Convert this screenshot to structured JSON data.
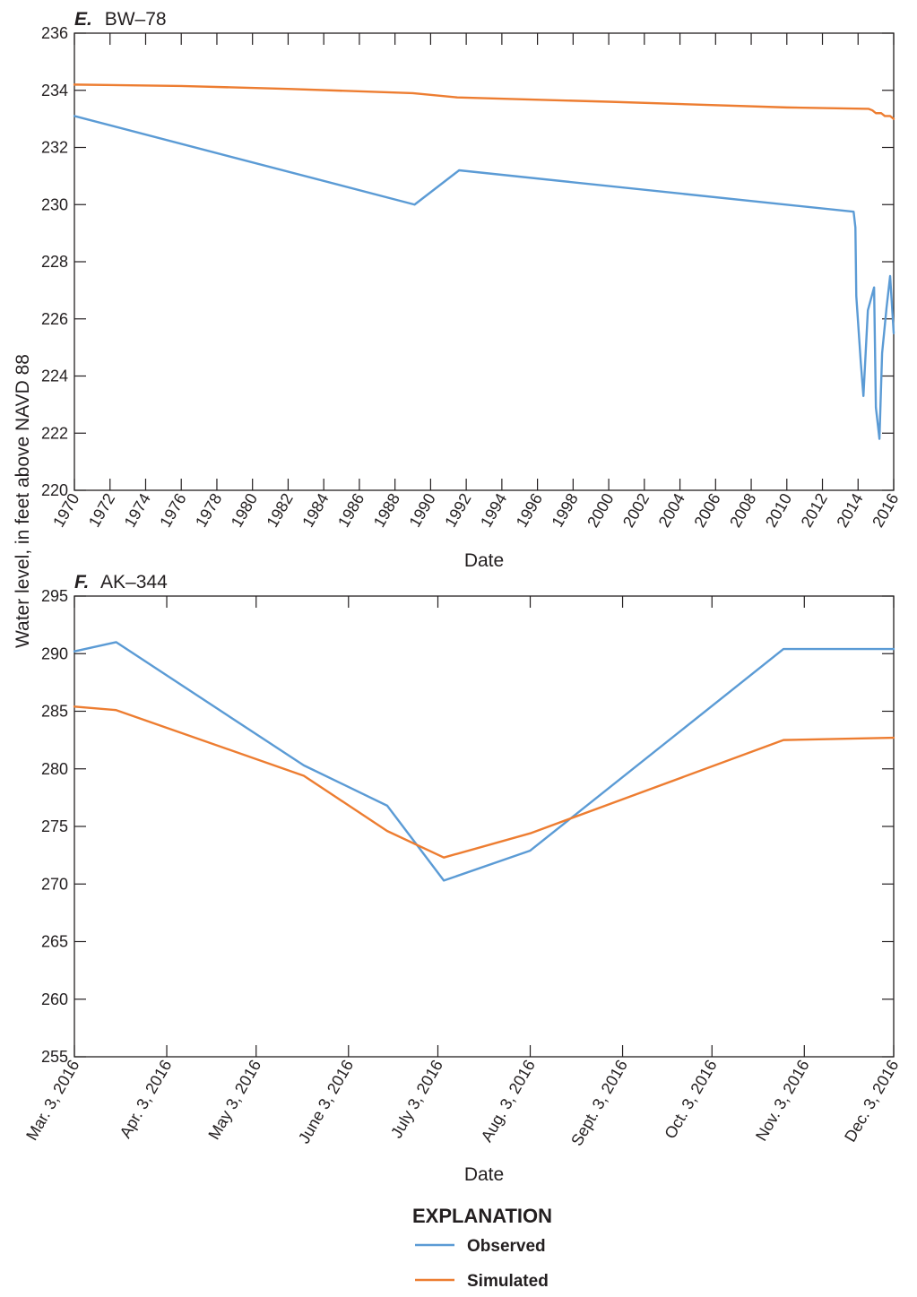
{
  "y_axis_label": "Water level, in feet above NAVD 88",
  "legend": {
    "title": "EXPLANATION",
    "items": [
      {
        "label": "Observed",
        "color": "#5b9bd5"
      },
      {
        "label": "Simulated",
        "color": "#ed7d31"
      }
    ]
  },
  "chart_data": [
    {
      "type": "line",
      "panel_letter": "E.",
      "title": "BW–78",
      "xlabel": "Date",
      "ylabel": "Water level, in feet above NAVD 88",
      "x_unit": "year",
      "xlim": [
        1970,
        2016
      ],
      "ylim": [
        220,
        236
      ],
      "x_ticks": [
        1970,
        1972,
        1974,
        1976,
        1978,
        1980,
        1982,
        1984,
        1986,
        1988,
        1990,
        1992,
        1994,
        1996,
        1998,
        2000,
        2002,
        2004,
        2006,
        2008,
        2010,
        2012,
        2014,
        2016
      ],
      "x_tick_labels": [
        "1970",
        "1972",
        "1974",
        "1976",
        "1978",
        "1980",
        "1982",
        "1984",
        "1986",
        "1988",
        "1990",
        "1992",
        "1994",
        "1996",
        "1998",
        "2000",
        "2002",
        "2004",
        "2006",
        "2008",
        "2010",
        "2012",
        "2014",
        "2016"
      ],
      "y_ticks": [
        220,
        222,
        224,
        226,
        228,
        230,
        232,
        234,
        236
      ],
      "y_tick_labels": [
        "220",
        "222",
        "224",
        "226",
        "228",
        "230",
        "232",
        "234",
        "236"
      ],
      "series": [
        {
          "name": "Observed",
          "color": "#5b9bd5",
          "points": [
            [
              1970.0,
              233.1
            ],
            [
              1989.1,
              230.0
            ],
            [
              1991.6,
              231.2
            ],
            [
              2013.75,
              229.75
            ],
            [
              2013.85,
              229.2
            ],
            [
              2013.9,
              226.8
            ],
            [
              2014.15,
              224.5
            ],
            [
              2014.3,
              223.3
            ],
            [
              2014.55,
              226.3
            ],
            [
              2014.9,
              227.1
            ],
            [
              2015.0,
              222.9
            ],
            [
              2015.2,
              221.8
            ],
            [
              2015.35,
              224.8
            ],
            [
              2015.6,
              226.4
            ],
            [
              2015.8,
              227.5
            ],
            [
              2016.0,
              225.5
            ]
          ]
        },
        {
          "name": "Simulated",
          "color": "#ed7d31",
          "points": [
            [
              1970.0,
              234.2
            ],
            [
              1976.0,
              234.15
            ],
            [
              1982.0,
              234.05
            ],
            [
              1989.0,
              233.9
            ],
            [
              1991.5,
              233.75
            ],
            [
              2000.0,
              233.6
            ],
            [
              2010.0,
              233.4
            ],
            [
              2014.6,
              233.35
            ],
            [
              2014.8,
              233.3
            ],
            [
              2015.0,
              233.2
            ],
            [
              2015.3,
              233.2
            ],
            [
              2015.5,
              233.1
            ],
            [
              2015.8,
              233.1
            ],
            [
              2016.0,
              233.0
            ]
          ]
        }
      ]
    },
    {
      "type": "line",
      "panel_letter": "F.",
      "title": "AK–344",
      "xlabel": "Date",
      "ylabel": "Water level, in feet above NAVD 88",
      "x_unit": "date",
      "xlim": [
        "2016-03-03",
        "2016-12-03"
      ],
      "ylim": [
        255,
        295
      ],
      "x_ticks": [
        "2016-03-03",
        "2016-04-03",
        "2016-05-03",
        "2016-06-03",
        "2016-07-03",
        "2016-08-03",
        "2016-09-03",
        "2016-10-03",
        "2016-11-03",
        "2016-12-03"
      ],
      "x_tick_labels": [
        "Mar. 3, 2016",
        "Apr. 3, 2016",
        "May 3, 2016",
        "June 3, 2016",
        "July 3, 2016",
        "Aug. 3, 2016",
        "Sept. 3, 2016",
        "Oct. 3, 2016",
        "Nov. 3, 2016",
        "Dec. 3, 2016"
      ],
      "y_ticks": [
        255,
        260,
        265,
        270,
        275,
        280,
        285,
        290,
        295
      ],
      "y_tick_labels": [
        "255",
        "260",
        "265",
        "270",
        "275",
        "280",
        "285",
        "290",
        "295"
      ],
      "series": [
        {
          "name": "Observed",
          "color": "#5b9bd5",
          "points": [
            [
              "2016-03-03",
              290.2
            ],
            [
              "2016-03-17",
              291.0
            ],
            [
              "2016-05-19",
              280.3
            ],
            [
              "2016-06-16",
              276.8
            ],
            [
              "2016-07-05",
              270.3
            ],
            [
              "2016-08-03",
              272.9
            ],
            [
              "2016-10-27",
              290.4
            ],
            [
              "2016-12-03",
              290.4
            ]
          ]
        },
        {
          "name": "Simulated",
          "color": "#ed7d31",
          "points": [
            [
              "2016-03-03",
              285.4
            ],
            [
              "2016-03-17",
              285.1
            ],
            [
              "2016-05-19",
              279.4
            ],
            [
              "2016-06-16",
              274.6
            ],
            [
              "2016-07-05",
              272.3
            ],
            [
              "2016-08-03",
              274.4
            ],
            [
              "2016-10-27",
              282.5
            ],
            [
              "2016-12-03",
              282.7
            ]
          ]
        }
      ]
    }
  ]
}
